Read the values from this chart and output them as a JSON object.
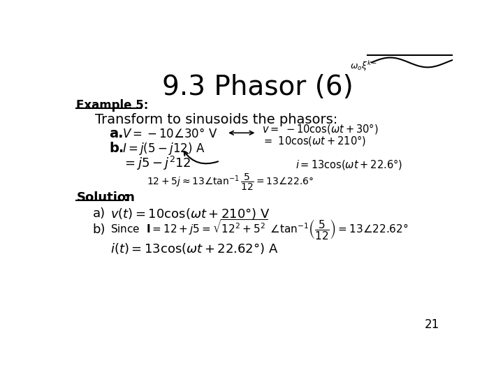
{
  "title": "9.3 Phasor (6)",
  "title_fontsize": 28,
  "background_color": "#ffffff",
  "text_color": "#000000",
  "page_number": "21",
  "example_label": "Example 5:",
  "transform_text": "Transform to sinusoids the phasors:",
  "item_a_label": "a.",
  "item_b_label": "b.",
  "solution_label": "Solution",
  "sol_a_label": "a)",
  "sol_b_label": "b)"
}
